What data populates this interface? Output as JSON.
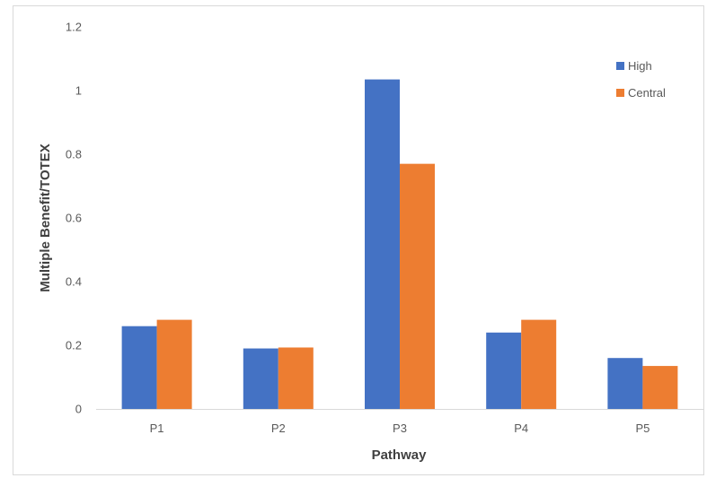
{
  "chart_data": {
    "type": "bar",
    "title": "",
    "xlabel": "Pathway",
    "ylabel": "Multiple Benefit/TOTEX",
    "categories": [
      "P1",
      "P2",
      "P3",
      "P4",
      "P5"
    ],
    "series": [
      {
        "name": "High",
        "color": "#4472c4",
        "values": [
          0.26,
          0.19,
          1.035,
          0.24,
          0.16
        ]
      },
      {
        "name": "Central",
        "color": "#ed7d31",
        "values": [
          0.28,
          0.193,
          0.77,
          0.28,
          0.135
        ]
      }
    ],
    "ylim": [
      0,
      1.2
    ],
    "yticks": [
      "0",
      "0.2",
      "0.4",
      "0.6",
      "0.8",
      "1",
      "1.2"
    ],
    "grid": false,
    "legend_position": "top-right"
  }
}
